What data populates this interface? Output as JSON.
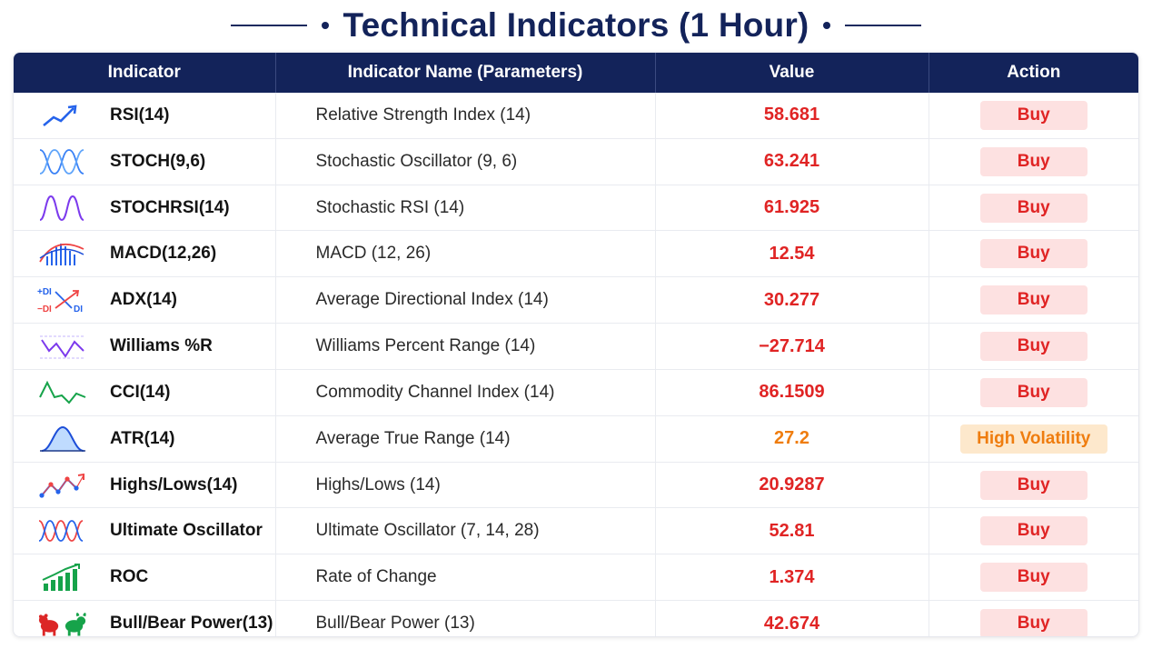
{
  "title": "Technical Indicators (1 Hour)",
  "colors": {
    "header_bg": "#13235a",
    "value_red": "#e02424",
    "value_orange": "#ef7d0f",
    "buy_badge_bg": "#fde1e1",
    "volatility_badge_bg": "#fde8cc"
  },
  "table": {
    "headers": {
      "indicator": "Indicator",
      "name": "Indicator Name (Parameters)",
      "value": "Value",
      "action": "Action"
    },
    "rows": [
      {
        "icon": "rsi-trend-up-icon",
        "indicator": "RSI(14)",
        "name": "Relative Strength Index (14)",
        "value": "58.681",
        "value_color": "red",
        "action": "Buy",
        "action_type": "buy"
      },
      {
        "icon": "stoch-waves-icon",
        "indicator": "STOCH(9,6)",
        "name": "Stochastic Oscillator (9, 6)",
        "value": "63.241",
        "value_color": "red",
        "action": "Buy",
        "action_type": "buy"
      },
      {
        "icon": "stochrsi-wave-icon",
        "indicator": "STOCHRSI(14)",
        "name": "Stochastic RSI (14)",
        "value": "61.925",
        "value_color": "red",
        "action": "Buy",
        "action_type": "buy"
      },
      {
        "icon": "macd-histogram-icon",
        "indicator": "MACD(12,26)",
        "name": "MACD (12, 26)",
        "value": "12.54",
        "value_color": "red",
        "action": "Buy",
        "action_type": "buy"
      },
      {
        "icon": "adx-di-icon",
        "indicator": "ADX(14)",
        "name": "Average Directional Index (14)",
        "value": "30.277",
        "value_color": "red",
        "action": "Buy",
        "action_type": "buy"
      },
      {
        "icon": "williams-zigzag-icon",
        "indicator": "Williams %R",
        "name": "Williams Percent Range (14)",
        "value": "−27.714",
        "value_color": "red",
        "action": "Buy",
        "action_type": "buy"
      },
      {
        "icon": "cci-zigzag-icon",
        "indicator": "CCI(14)",
        "name": "Commodity Channel Index (14)",
        "value": "86.1509",
        "value_color": "red",
        "action": "Buy",
        "action_type": "buy"
      },
      {
        "icon": "atr-bell-curve-icon",
        "indicator": "ATR(14)",
        "name": "Average True Range (14)",
        "value": "27.2",
        "value_color": "orange",
        "action": "High Volatility",
        "action_type": "volatility"
      },
      {
        "icon": "highs-lows-line-icon",
        "indicator": "Highs/Lows(14)",
        "name": "Highs/Lows (14)",
        "value": "20.9287",
        "value_color": "red",
        "action": "Buy",
        "action_type": "buy"
      },
      {
        "icon": "ultimate-oscillator-icon",
        "indicator": "Ultimate Oscillator",
        "name": "Ultimate Oscillator (7, 14, 28)",
        "value": "52.81",
        "value_color": "red",
        "action": "Buy",
        "action_type": "buy"
      },
      {
        "icon": "roc-bars-icon",
        "indicator": "ROC",
        "name": "Rate of Change",
        "value": "1.374",
        "value_color": "red",
        "action": "Buy",
        "action_type": "buy"
      },
      {
        "icon": "bull-bear-icon",
        "indicator": "Bull/Bear Power(13)",
        "name": "Bull/Bear Power (13)",
        "value": "42.674",
        "value_color": "red",
        "action": "Buy",
        "action_type": "buy"
      }
    ]
  }
}
